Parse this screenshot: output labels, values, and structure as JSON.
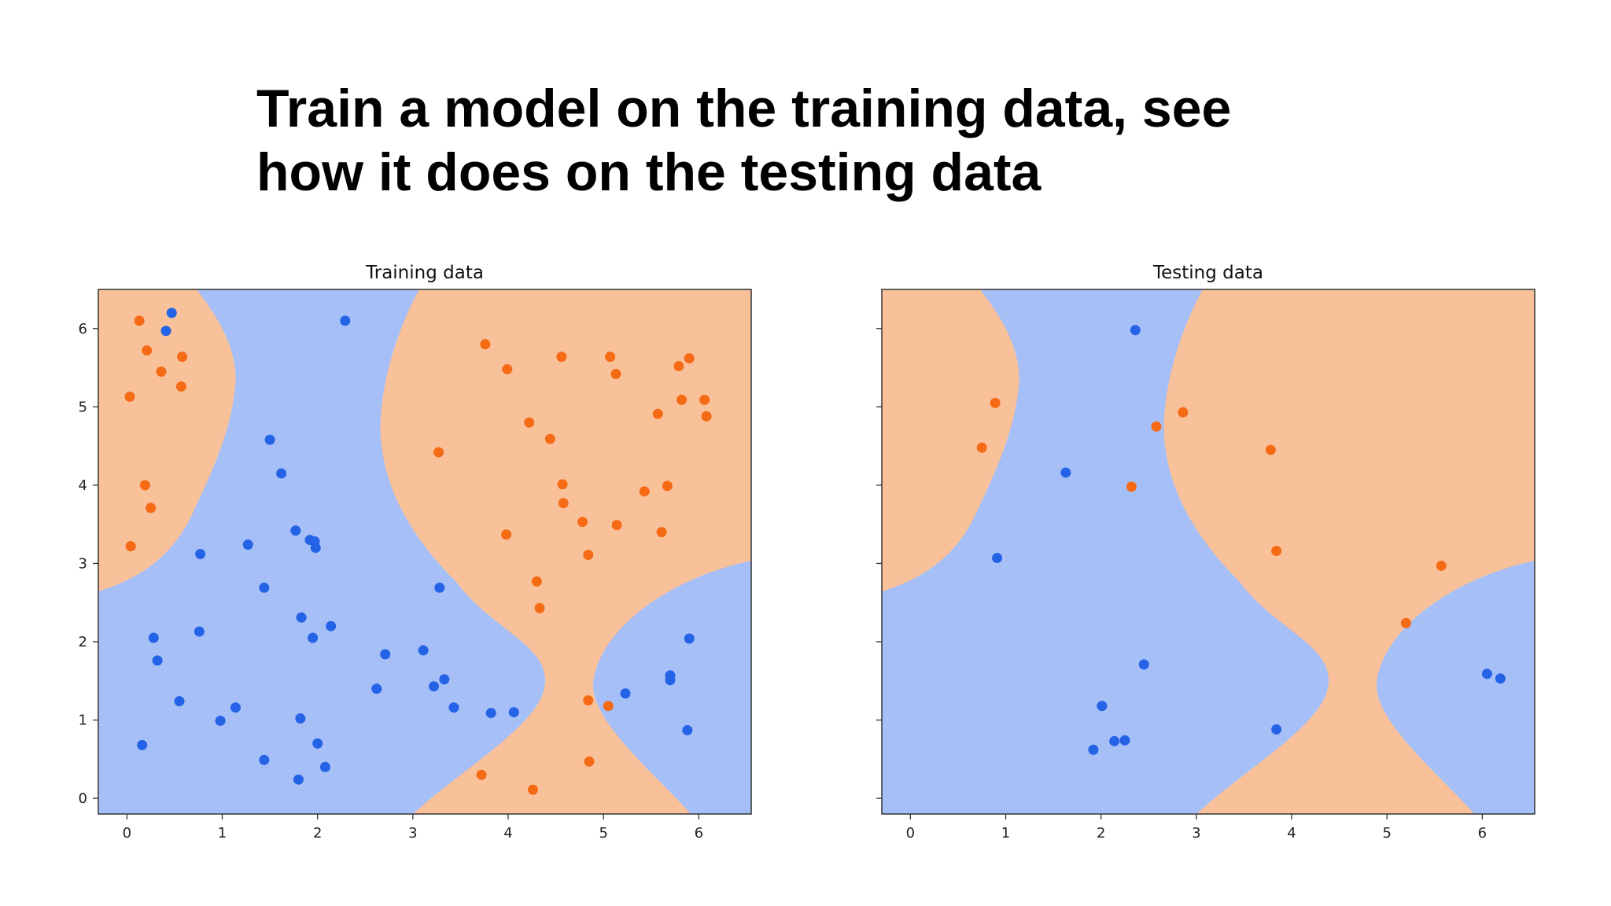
{
  "slide": {
    "title_line1": "Train a model on the training data, see",
    "title_line2": "how it does on the testing data"
  },
  "colors": {
    "blue_region": "#a6bff7",
    "orange_region": "#f9c19a",
    "blue_point": "#2463e6",
    "orange_point": "#f56a14",
    "axis": "#333333"
  },
  "chart_data": [
    {
      "type": "scatter",
      "title": "Training data",
      "xlabel": "",
      "ylabel": "",
      "xlim": [
        -0.3,
        6.55
      ],
      "ylim": [
        -0.2,
        6.5
      ],
      "xticks": [
        "0",
        "1",
        "2",
        "3",
        "4",
        "5",
        "6"
      ],
      "yticks": [
        "0",
        "1",
        "2",
        "3",
        "4",
        "5",
        "6"
      ],
      "background": "decision regions (blue / orange)",
      "series": [
        {
          "class": "blue",
          "points": [
            [
              0.47,
              6.2
            ],
            [
              0.41,
              5.97
            ],
            [
              2.29,
              6.1
            ],
            [
              1.5,
              4.58
            ],
            [
              1.62,
              4.15
            ],
            [
              0.77,
              3.12
            ],
            [
              1.27,
              3.24
            ],
            [
              1.77,
              3.42
            ],
            [
              1.92,
              3.3
            ],
            [
              1.97,
              3.28
            ],
            [
              1.98,
              3.2
            ],
            [
              1.44,
              2.69
            ],
            [
              3.28,
              2.69
            ],
            [
              1.83,
              2.31
            ],
            [
              2.14,
              2.2
            ],
            [
              0.76,
              2.13
            ],
            [
              0.28,
              2.05
            ],
            [
              1.95,
              2.05
            ],
            [
              0.32,
              1.76
            ],
            [
              2.71,
              1.84
            ],
            [
              3.11,
              1.89
            ],
            [
              3.33,
              1.52
            ],
            [
              3.22,
              1.43
            ],
            [
              2.62,
              1.4
            ],
            [
              5.9,
              2.04
            ],
            [
              5.23,
              1.34
            ],
            [
              5.7,
              1.57
            ],
            [
              5.7,
              1.51
            ],
            [
              0.55,
              1.24
            ],
            [
              1.14,
              1.16
            ],
            [
              3.43,
              1.16
            ],
            [
              3.82,
              1.09
            ],
            [
              4.06,
              1.1
            ],
            [
              0.98,
              0.99
            ],
            [
              1.82,
              1.02
            ],
            [
              5.88,
              0.87
            ],
            [
              0.16,
              0.68
            ],
            [
              2.0,
              0.7
            ],
            [
              1.44,
              0.49
            ],
            [
              2.08,
              0.4
            ],
            [
              1.8,
              0.24
            ]
          ]
        },
        {
          "class": "orange",
          "points": [
            [
              0.13,
              6.1
            ],
            [
              0.21,
              5.72
            ],
            [
              0.58,
              5.64
            ],
            [
              0.36,
              5.45
            ],
            [
              0.57,
              5.26
            ],
            [
              0.03,
              5.13
            ],
            [
              0.19,
              4.0
            ],
            [
              0.25,
              3.71
            ],
            [
              0.04,
              3.22
            ],
            [
              3.76,
              5.8
            ],
            [
              3.99,
              5.48
            ],
            [
              4.56,
              5.64
            ],
            [
              5.07,
              5.64
            ],
            [
              5.13,
              5.42
            ],
            [
              5.79,
              5.52
            ],
            [
              5.9,
              5.62
            ],
            [
              5.82,
              5.09
            ],
            [
              6.06,
              5.09
            ],
            [
              6.08,
              4.88
            ],
            [
              5.57,
              4.91
            ],
            [
              4.22,
              4.8
            ],
            [
              4.44,
              4.59
            ],
            [
              3.27,
              4.42
            ],
            [
              4.57,
              4.01
            ],
            [
              4.58,
              3.77
            ],
            [
              5.67,
              3.99
            ],
            [
              5.43,
              3.92
            ],
            [
              4.78,
              3.53
            ],
            [
              5.14,
              3.49
            ],
            [
              3.98,
              3.37
            ],
            [
              5.61,
              3.4
            ],
            [
              4.84,
              3.11
            ],
            [
              4.3,
              2.77
            ],
            [
              4.33,
              2.43
            ],
            [
              4.84,
              1.25
            ],
            [
              5.05,
              1.18
            ],
            [
              3.72,
              0.3
            ],
            [
              4.85,
              0.47
            ],
            [
              4.26,
              0.11
            ]
          ]
        }
      ]
    },
    {
      "type": "scatter",
      "title": "Testing data",
      "xlabel": "",
      "ylabel": "",
      "xlim": [
        -0.3,
        6.55
      ],
      "ylim": [
        -0.2,
        6.5
      ],
      "xticks": [
        "0",
        "1",
        "2",
        "3",
        "4",
        "5",
        "6"
      ],
      "yticks": [],
      "background": "decision regions (blue / orange)",
      "series": [
        {
          "class": "blue",
          "points": [
            [
              2.36,
              5.98
            ],
            [
              1.63,
              4.16
            ],
            [
              0.91,
              3.07
            ],
            [
              2.45,
              1.71
            ],
            [
              2.01,
              1.18
            ],
            [
              2.14,
              0.73
            ],
            [
              2.25,
              0.74
            ],
            [
              1.92,
              0.62
            ],
            [
              3.84,
              0.88
            ],
            [
              6.05,
              1.59
            ],
            [
              6.19,
              1.53
            ]
          ]
        },
        {
          "class": "orange",
          "points": [
            [
              0.89,
              5.05
            ],
            [
              0.75,
              4.48
            ],
            [
              2.58,
              4.75
            ],
            [
              2.86,
              4.93
            ],
            [
              2.32,
              3.98
            ],
            [
              3.78,
              4.45
            ],
            [
              3.84,
              3.16
            ],
            [
              5.57,
              2.97
            ],
            [
              5.2,
              2.24
            ]
          ]
        }
      ]
    }
  ]
}
